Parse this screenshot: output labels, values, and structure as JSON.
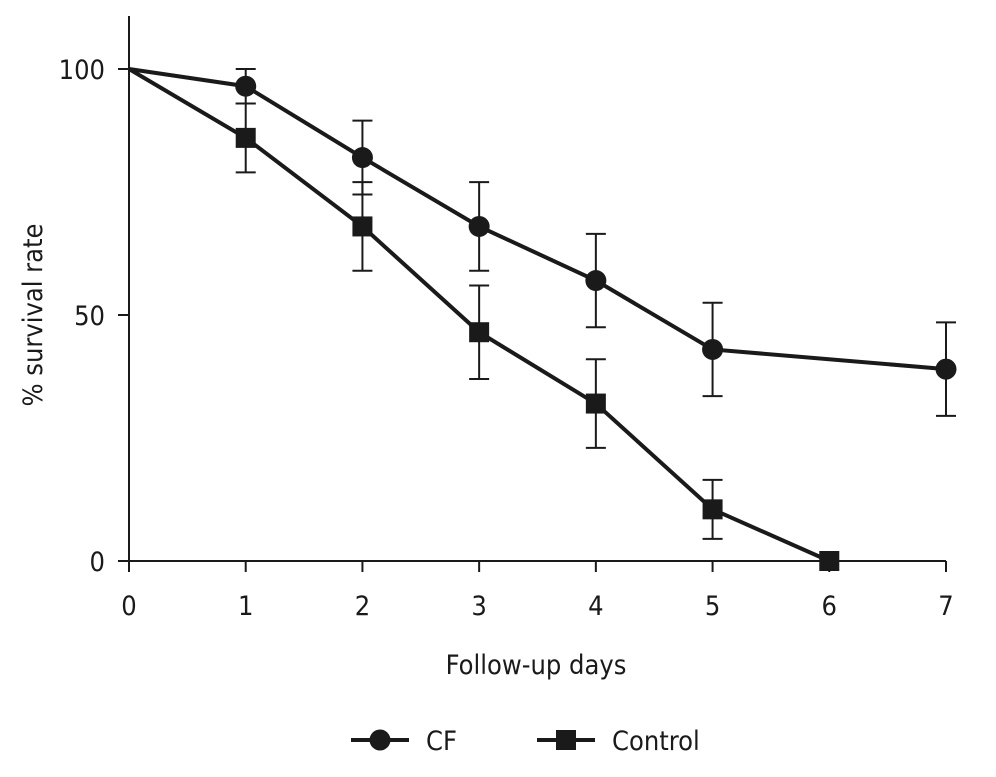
{
  "chart_data": {
    "type": "line",
    "xlabel": "Follow-up days",
    "ylabel": "% survival rate",
    "xlim": [
      0,
      7
    ],
    "ylim": [
      0,
      100
    ],
    "x_ticks": [
      "0",
      "1",
      "2",
      "3",
      "4",
      "5",
      "6",
      "7"
    ],
    "y_ticks": [
      "0",
      "50",
      "100"
    ],
    "grid": false,
    "legend_position": "bottom-center",
    "series": [
      {
        "name": "CF",
        "marker": "circle",
        "x": [
          0,
          1,
          2,
          3,
          4,
          5,
          7
        ],
        "y": [
          100,
          96.5,
          82,
          68,
          57,
          43,
          39
        ],
        "error": [
          0,
          3.5,
          7.5,
          9,
          9.5,
          9.5,
          9.5
        ]
      },
      {
        "name": "Control",
        "marker": "square",
        "x": [
          0,
          1,
          2,
          3,
          4,
          5,
          6
        ],
        "y": [
          100,
          86,
          68,
          46.5,
          32,
          10.5,
          0
        ],
        "error": [
          0,
          7,
          9,
          9.5,
          9,
          6,
          0
        ]
      }
    ],
    "colors": {
      "line": "#1a1a1a"
    }
  }
}
